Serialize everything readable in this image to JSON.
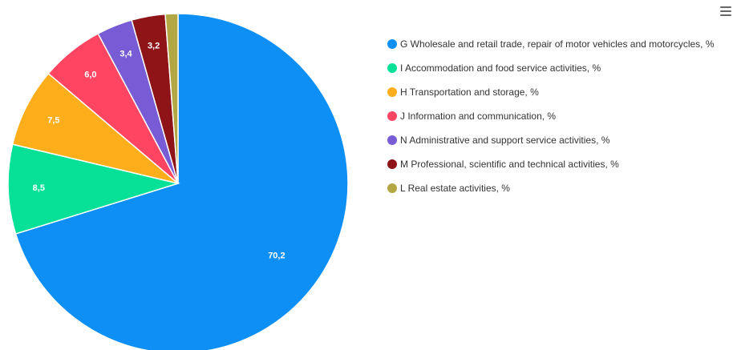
{
  "chart_data": {
    "type": "pie",
    "title": "",
    "slices": [
      {
        "name": "G Wholesale and retail trade, repair of motor vehicles and motorcycles, %",
        "value": 70.2,
        "label": "70,2",
        "color": "#0d8ff5"
      },
      {
        "name": "I Accommodation and food service activities, %",
        "value": 8.5,
        "label": "8,5",
        "color": "#07e097"
      },
      {
        "name": "H Transportation and storage, %",
        "value": 7.5,
        "label": "7,5",
        "color": "#feae1b"
      },
      {
        "name": "J Information and communication, %",
        "value": 6.0,
        "label": "6,0",
        "color": "#ff4561"
      },
      {
        "name": "N Administrative and support service activities, %",
        "value": 3.4,
        "label": "3,4",
        "color": "#775cd6"
      },
      {
        "name": "M Professional, scientific and technical activities, %",
        "value": 3.2,
        "label": "3,2",
        "color": "#8e1417"
      },
      {
        "name": "L Real estate activities, %",
        "value": 1.2,
        "label": "",
        "color": "#b2a742"
      }
    ],
    "legend_position": "right",
    "start_angle_deg": 0,
    "direction": "clockwise"
  },
  "toolbar": {
    "menu_icon": "hamburger-menu-icon"
  }
}
